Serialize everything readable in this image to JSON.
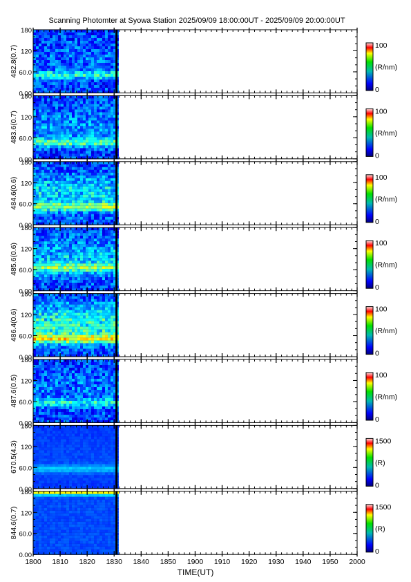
{
  "title": "Scanning Photomter at Syowa Station 2025/09/09 18:00:00UT - 2025/09/09 20:00:00UT",
  "colors": {
    "frame": "#000000",
    "background": "#ffffff",
    "data_base": "#0a1aa8"
  },
  "chart_data": {
    "type": "heatmap",
    "xlabel": "TIME(UT)",
    "xlim": [
      "1800",
      "2000"
    ],
    "x_ticks": [
      "1800",
      "1810",
      "1820",
      "1830",
      "1840",
      "1850",
      "1900",
      "1910",
      "1920",
      "1930",
      "1940",
      "1950",
      "2000"
    ],
    "data_coverage": [
      "1800",
      "1831"
    ],
    "y_ticks": [
      "0.00",
      "60.0",
      "120",
      "180"
    ],
    "ylim": [
      0,
      180
    ],
    "panels": [
      {
        "ylabel": "482.8(0.7)",
        "cbar_max": "100",
        "cbar_min": "0",
        "cbar_unit": "(R/nm)",
        "band_center": 55,
        "haze": 0.15,
        "intensity": 0.45,
        "texture": 0.1
      },
      {
        "ylabel": "483.6(0.7)",
        "cbar_max": "100",
        "cbar_min": "0",
        "cbar_unit": "(R/nm)",
        "band_center": 50,
        "haze": 0.3,
        "intensity": 0.55,
        "texture": 0.1
      },
      {
        "ylabel": "484.6(0.6)",
        "cbar_max": "100",
        "cbar_min": "0",
        "cbar_unit": "(R/nm)",
        "band_center": 55,
        "haze": 0.55,
        "intensity": 0.6,
        "texture": 0.1
      },
      {
        "ylabel": "485.6(0.6)",
        "cbar_max": "100",
        "cbar_min": "0",
        "cbar_unit": "(R/nm)",
        "band_center": 70,
        "haze": 0.5,
        "intensity": 0.5,
        "texture": 0.1
      },
      {
        "ylabel": "486.4(0.6)",
        "cbar_max": "100",
        "cbar_min": "0",
        "cbar_unit": "(R/nm)",
        "band_center": 55,
        "haze": 0.85,
        "intensity": 0.75,
        "texture": 0.1
      },
      {
        "ylabel": "487.6(0.5)",
        "cbar_max": "100",
        "cbar_min": "0",
        "cbar_unit": "(R/nm)",
        "band_center": 60,
        "haze": 0.2,
        "intensity": 0.4,
        "texture": 0.1
      },
      {
        "ylabel": "670.5(4.3)",
        "cbar_max": "1500",
        "cbar_min": "0",
        "cbar_unit": "(R)",
        "band_center": 60,
        "haze": 0.05,
        "intensity": 0.3,
        "texture": 0.02
      },
      {
        "ylabel": "844.6(0.7)",
        "cbar_max": "1500",
        "cbar_min": "0",
        "cbar_unit": "(R)",
        "band_center": 180,
        "haze": 0.25,
        "intensity": 1.0,
        "texture": 0.03
      }
    ]
  }
}
